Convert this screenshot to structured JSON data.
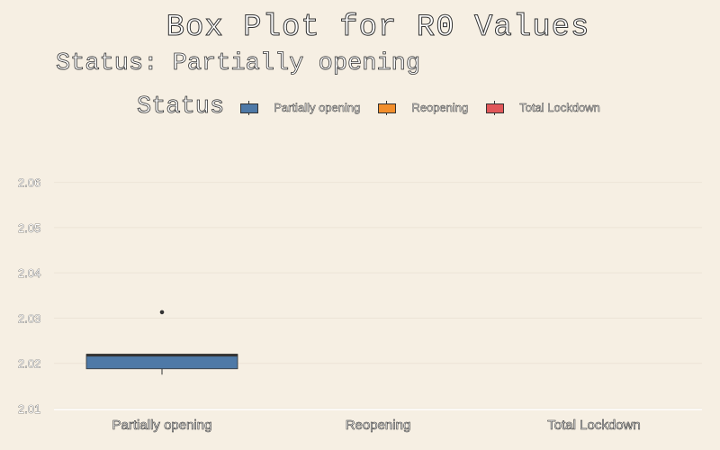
{
  "chart_data": {
    "type": "box",
    "title": "Box Plot for R0 Values",
    "subtitle": "Status: Partially opening",
    "legend": {
      "title": "Status",
      "placement": "top",
      "entries": [
        {
          "label": "Partially opening",
          "color": "#4e79a7"
        },
        {
          "label": "Reopening",
          "color": "#f28e2b"
        },
        {
          "label": "Total Lockdown",
          "color": "#e15759"
        }
      ]
    },
    "categories": [
      "Partially opening",
      "Reopening",
      "Total Lockdown"
    ],
    "y_ticks": [
      "2.01",
      "2.02",
      "2.03",
      "2.04",
      "2.05",
      "2.06"
    ],
    "y_tick_values": [
      2.01,
      2.02,
      2.03,
      2.04,
      2.05,
      2.06
    ],
    "ylim": [
      2.0098,
      2.0645
    ],
    "grid": true,
    "series": [
      {
        "name": "Partially opening",
        "category": "Partially opening",
        "color": "#4e79a7",
        "box": {
          "min": 2.0175,
          "q1": 2.0188,
          "median": 2.0218,
          "q3": 2.022,
          "max": 2.022
        },
        "outliers": [
          2.0313
        ]
      }
    ]
  }
}
